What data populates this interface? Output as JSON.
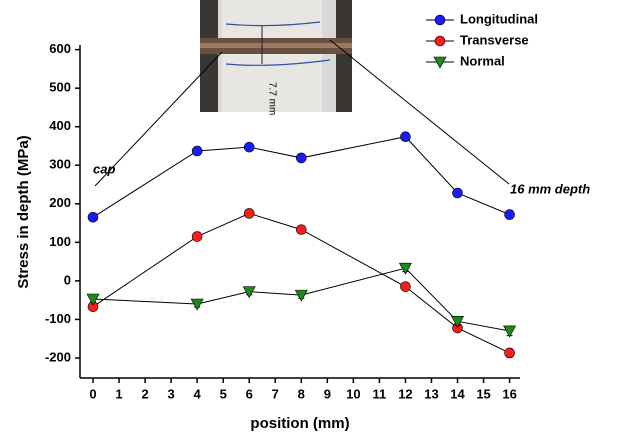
{
  "chart_data": {
    "type": "line",
    "x": [
      0,
      4,
      6,
      8,
      12,
      14,
      16
    ],
    "series": [
      {
        "name": "Longitudinal",
        "color": "#1a1aff",
        "marker": "circle",
        "values": [
          165,
          337,
          347,
          319,
          374,
          228,
          172
        ],
        "errors": [
          8,
          10,
          9,
          9,
          9,
          10,
          11
        ]
      },
      {
        "name": "Transverse",
        "color": "#ff1a1a",
        "marker": "circle",
        "values": [
          -67,
          115,
          175,
          133,
          -15,
          -122,
          -187
        ],
        "errors": [
          8,
          8,
          9,
          8,
          8,
          10,
          11
        ]
      },
      {
        "name": "Normal",
        "color": "#1a8a1a",
        "marker": "triangle-down",
        "values": [
          -47,
          -60,
          -28,
          -37,
          33,
          -105,
          -130
        ],
        "errors": [
          8,
          8,
          8,
          8,
          9,
          10,
          12
        ]
      }
    ],
    "xlabel": "position (mm)",
    "ylabel": "Stress in depth (MPa)",
    "xlim": [
      -0.5,
      16.4
    ],
    "ylim": [
      -252,
      612
    ],
    "xticks": [
      0,
      1,
      2,
      3,
      4,
      5,
      6,
      7,
      8,
      9,
      10,
      11,
      12,
      13,
      14,
      15,
      16
    ],
    "yticks": [
      -200,
      -100,
      0,
      100,
      200,
      300,
      400,
      500,
      600
    ],
    "annotations": [
      "cap",
      "16 mm depth"
    ],
    "inset_label": "7.7 mm",
    "legend": "top-right"
  }
}
